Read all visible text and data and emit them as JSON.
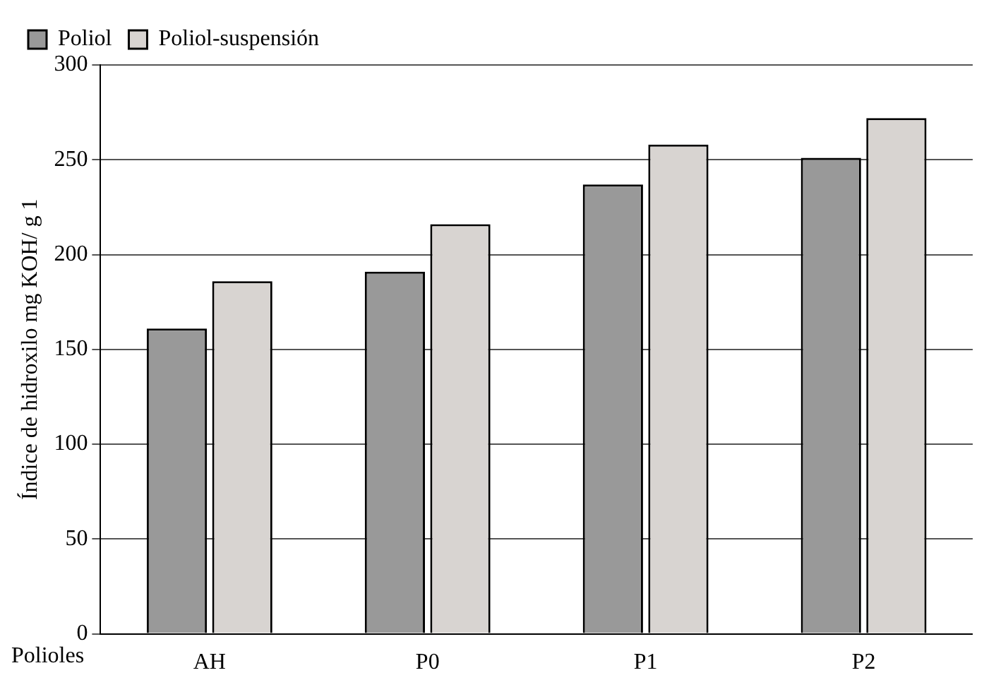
{
  "chart_data": {
    "type": "bar",
    "xlabel": "Polioles",
    "ylabel": "Índice de hidroxilo mg KOH/ g 1",
    "categories": [
      "AH",
      "P0",
      "P1",
      "P2"
    ],
    "series": [
      {
        "name": "Poliol",
        "color": "#999999",
        "values": [
          161,
          191,
          237,
          251
        ]
      },
      {
        "name": "Poliol-suspensión",
        "color": "#d8d4d1",
        "values": [
          186,
          216,
          258,
          272
        ]
      }
    ],
    "ylim": [
      0,
      300
    ],
    "yticks": [
      0,
      50,
      100,
      150,
      200,
      250,
      300
    ],
    "grid": "y",
    "legend": "top left"
  }
}
